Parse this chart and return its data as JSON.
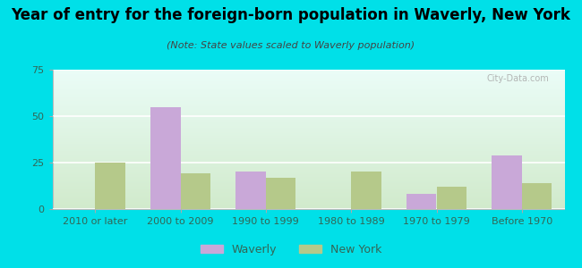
{
  "title": "Year of entry for the foreign-born population in Waverly, New York",
  "subtitle": "(Note: State values scaled to Waverly population)",
  "categories": [
    "2010 or later",
    "2000 to 2009",
    "1990 to 1999",
    "1980 to 1989",
    "1970 to 1979",
    "Before 1970"
  ],
  "waverly_values": [
    0,
    55,
    20,
    0,
    8,
    29
  ],
  "newyork_values": [
    25,
    19,
    17,
    20,
    12,
    14
  ],
  "waverly_color": "#c9a8d8",
  "newyork_color": "#b5c98a",
  "background_outer": "#00e0e8",
  "ylim": [
    0,
    75
  ],
  "yticks": [
    0,
    25,
    50,
    75
  ],
  "bar_width": 0.35,
  "title_fontsize": 12,
  "subtitle_fontsize": 8,
  "tick_fontsize": 8,
  "legend_fontsize": 9,
  "tick_color": "#336655",
  "watermark": "City-Data.com"
}
